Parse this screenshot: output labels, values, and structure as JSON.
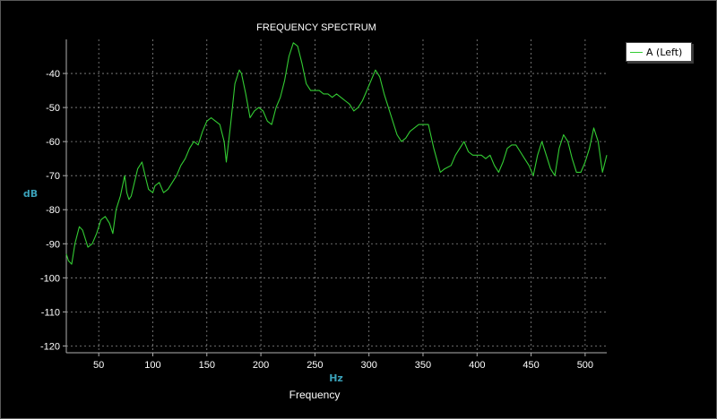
{
  "chart_data": {
    "type": "line",
    "title": "FREQUENCY SPECTRUM",
    "xlabel": "Frequency",
    "x_unit": "Hz",
    "ylabel": "dB",
    "xlim": [
      20,
      520
    ],
    "ylim": [
      -122,
      -30
    ],
    "x_ticks": [
      50,
      100,
      150,
      200,
      250,
      300,
      350,
      400,
      450,
      500
    ],
    "y_ticks": [
      -40,
      -50,
      -60,
      -70,
      -80,
      -90,
      -100,
      -110,
      -120
    ],
    "grid": true,
    "legend_position": "top-right",
    "series": [
      {
        "name": "A (Left)",
        "color": "#33cc33",
        "x": [
          20,
          22,
          25,
          28,
          32,
          35,
          40,
          44,
          48,
          52,
          56,
          60,
          63,
          66,
          70,
          74,
          76,
          78,
          80,
          83,
          86,
          90,
          93,
          96,
          100,
          102,
          106,
          110,
          114,
          118,
          122,
          126,
          130,
          134,
          138,
          142,
          146,
          150,
          154,
          158,
          162,
          166,
          168,
          172,
          176,
          180,
          182,
          186,
          190,
          194,
          198,
          202,
          206,
          210,
          214,
          218,
          222,
          226,
          230,
          234,
          238,
          242,
          246,
          250,
          254,
          258,
          262,
          266,
          270,
          274,
          278,
          282,
          286,
          290,
          294,
          298,
          302,
          306,
          310,
          314,
          318,
          322,
          326,
          330,
          334,
          338,
          342,
          346,
          350,
          355,
          360,
          366,
          370,
          376,
          380,
          384,
          388,
          392,
          396,
          400,
          404,
          408,
          412,
          416,
          420,
          424,
          428,
          432,
          436,
          440,
          444,
          448,
          452,
          456,
          460,
          464,
          468,
          472,
          476,
          480,
          484,
          488,
          492,
          496,
          500,
          504,
          508,
          512,
          516,
          520
        ],
        "values": [
          -93,
          -95,
          -96,
          -90,
          -85,
          -86,
          -91,
          -90,
          -87,
          -83,
          -82,
          -84,
          -87,
          -80,
          -76,
          -70,
          -75,
          -77,
          -76,
          -72,
          -68,
          -66,
          -70,
          -74,
          -75,
          -73,
          -72,
          -75,
          -74,
          -72,
          -70,
          -67,
          -65,
          -62,
          -60,
          -61,
          -57,
          -54,
          -53,
          -54,
          -55,
          -60,
          -66,
          -55,
          -43,
          -39,
          -40,
          -46,
          -53,
          -51,
          -50,
          -51,
          -54,
          -55,
          -50,
          -47,
          -42,
          -35,
          -31,
          -32,
          -37,
          -43,
          -45,
          -45,
          -45,
          -46,
          -46,
          -47,
          -46,
          -47,
          -48,
          -49,
          -51,
          -50,
          -48,
          -45,
          -42,
          -39,
          -41,
          -46,
          -50,
          -54,
          -58,
          -60,
          -59,
          -57,
          -56,
          -55,
          -55,
          -55,
          -62,
          -69,
          -68,
          -67,
          -64,
          -62,
          -60,
          -63,
          -64,
          -64,
          -64,
          -65,
          -64,
          -67,
          -69,
          -66,
          -62,
          -61,
          -61,
          -63,
          -65,
          -67,
          -70,
          -64,
          -60,
          -64,
          -68,
          -70,
          -62,
          -58,
          -60,
          -65,
          -69,
          -69,
          -66,
          -62,
          -56,
          -60,
          -69,
          -64
        ]
      }
    ]
  }
}
